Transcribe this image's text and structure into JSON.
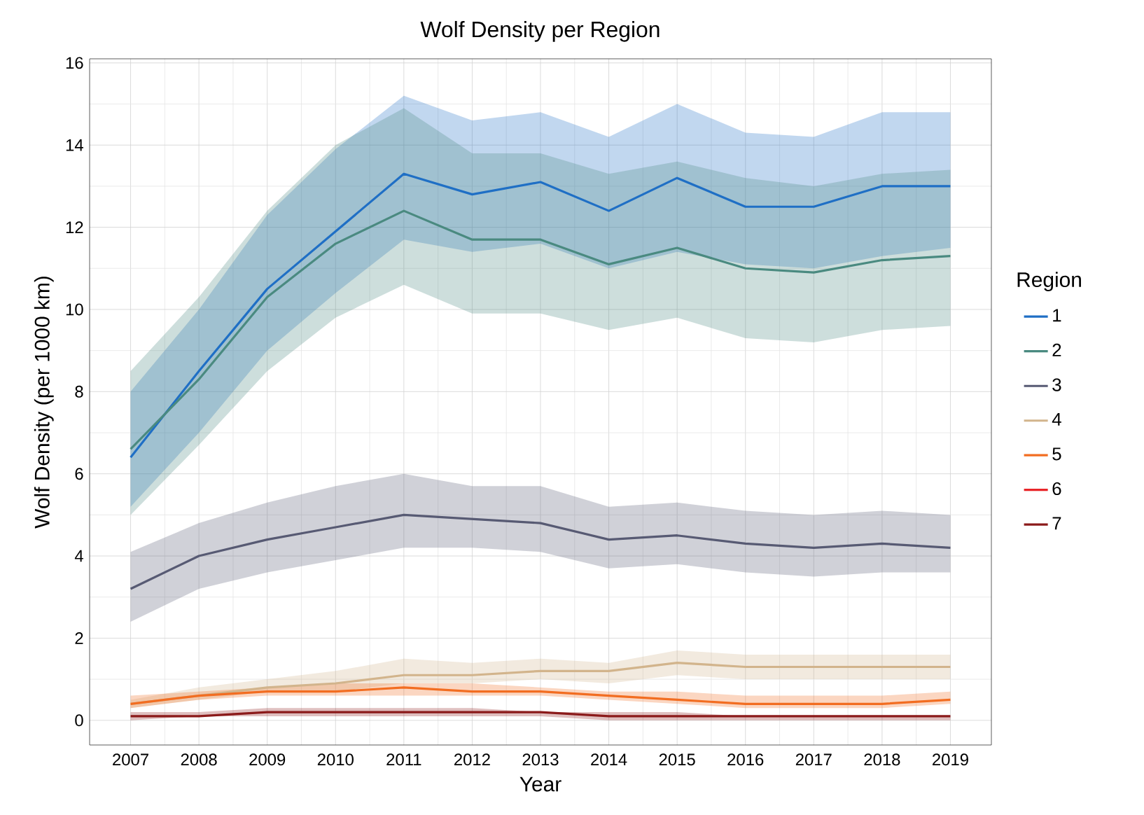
{
  "chart_data": {
    "type": "line",
    "title": "Wolf Density per Region",
    "xlabel": "Year",
    "ylabel": "Wolf Density (per 1000 km)",
    "legend_title": "Region",
    "legend": "right",
    "grid": true,
    "line_style": "solid",
    "x": [
      2007,
      2008,
      2009,
      2010,
      2011,
      2012,
      2013,
      2014,
      2015,
      2016,
      2017,
      2018,
      2019
    ],
    "xlim": [
      2006.4,
      2019.6
    ],
    "xticks": [
      2007,
      2008,
      2009,
      2010,
      2011,
      2012,
      2013,
      2014,
      2015,
      2016,
      2017,
      2018,
      2019
    ],
    "ylim": [
      -0.6,
      16.1
    ],
    "yticks": [
      0,
      2,
      4,
      6,
      8,
      10,
      12,
      14,
      16
    ],
    "series": [
      {
        "name": "1",
        "color": "#1f6fc5",
        "values": [
          6.4,
          8.5,
          10.5,
          11.9,
          13.3,
          12.8,
          13.1,
          12.4,
          13.2,
          12.5,
          12.5,
          13.0,
          13.0
        ],
        "lower": [
          5.2,
          7.0,
          9.0,
          10.4,
          11.7,
          11.4,
          11.6,
          11.0,
          11.4,
          11.1,
          11.0,
          11.3,
          11.5
        ],
        "upper": [
          8.0,
          10.0,
          12.3,
          13.9,
          15.2,
          14.6,
          14.8,
          14.2,
          15.0,
          14.3,
          14.2,
          14.8,
          14.8
        ]
      },
      {
        "name": "2",
        "color": "#4a8a80",
        "values": [
          6.6,
          8.3,
          10.3,
          11.6,
          12.4,
          11.7,
          11.7,
          11.1,
          11.5,
          11.0,
          10.9,
          11.2,
          11.3
        ],
        "lower": [
          5.0,
          6.7,
          8.5,
          9.8,
          10.6,
          9.9,
          9.9,
          9.5,
          9.8,
          9.3,
          9.2,
          9.5,
          9.6
        ],
        "upper": [
          8.5,
          10.3,
          12.4,
          14.0,
          14.9,
          13.8,
          13.8,
          13.3,
          13.6,
          13.2,
          13.0,
          13.3,
          13.4
        ]
      },
      {
        "name": "3",
        "color": "#575a73",
        "values": [
          3.2,
          4.0,
          4.4,
          4.7,
          5.0,
          4.9,
          4.8,
          4.4,
          4.5,
          4.3,
          4.2,
          4.3,
          4.2
        ],
        "lower": [
          2.4,
          3.2,
          3.6,
          3.9,
          4.2,
          4.2,
          4.1,
          3.7,
          3.8,
          3.6,
          3.5,
          3.6,
          3.6
        ],
        "upper": [
          4.1,
          4.8,
          5.3,
          5.7,
          6.0,
          5.7,
          5.7,
          5.2,
          5.3,
          5.1,
          5.0,
          5.1,
          5.0
        ]
      },
      {
        "name": "4",
        "color": "#d2b48c",
        "values": [
          0.4,
          0.6,
          0.8,
          0.9,
          1.1,
          1.1,
          1.2,
          1.2,
          1.4,
          1.3,
          1.3,
          1.3,
          1.3
        ],
        "lower": [
          0.3,
          0.5,
          0.7,
          0.7,
          0.9,
          0.9,
          1.0,
          0.9,
          1.1,
          1.0,
          1.0,
          1.0,
          1.0
        ],
        "upper": [
          0.5,
          0.8,
          1.0,
          1.2,
          1.5,
          1.4,
          1.5,
          1.4,
          1.7,
          1.6,
          1.6,
          1.6,
          1.6
        ]
      },
      {
        "name": "5",
        "color": "#f26d21",
        "values": [
          0.4,
          0.6,
          0.7,
          0.7,
          0.8,
          0.7,
          0.7,
          0.6,
          0.5,
          0.4,
          0.4,
          0.4,
          0.5
        ],
        "lower": [
          0.3,
          0.5,
          0.6,
          0.6,
          0.6,
          0.6,
          0.6,
          0.5,
          0.4,
          0.3,
          0.3,
          0.3,
          0.4
        ],
        "upper": [
          0.6,
          0.7,
          0.8,
          0.9,
          0.9,
          0.9,
          0.8,
          0.7,
          0.7,
          0.6,
          0.6,
          0.6,
          0.7
        ]
      },
      {
        "name": "6",
        "color": "#e8262a",
        "values": [
          null,
          null,
          null,
          null,
          null,
          null,
          null,
          null,
          null,
          null,
          null,
          null,
          null
        ]
      },
      {
        "name": "7",
        "color": "#8b1a1a",
        "values": [
          0.1,
          0.1,
          0.2,
          0.2,
          0.2,
          0.2,
          0.2,
          0.1,
          0.1,
          0.1,
          0.1,
          0.1,
          0.1
        ],
        "lower": [
          0.0,
          0.1,
          0.1,
          0.1,
          0.1,
          0.1,
          0.1,
          0.0,
          0.0,
          0.0,
          0.0,
          0.0,
          0.0
        ],
        "upper": [
          0.2,
          0.2,
          0.3,
          0.3,
          0.3,
          0.3,
          0.2,
          0.2,
          0.2,
          0.1,
          0.1,
          0.1,
          0.1
        ]
      }
    ]
  }
}
